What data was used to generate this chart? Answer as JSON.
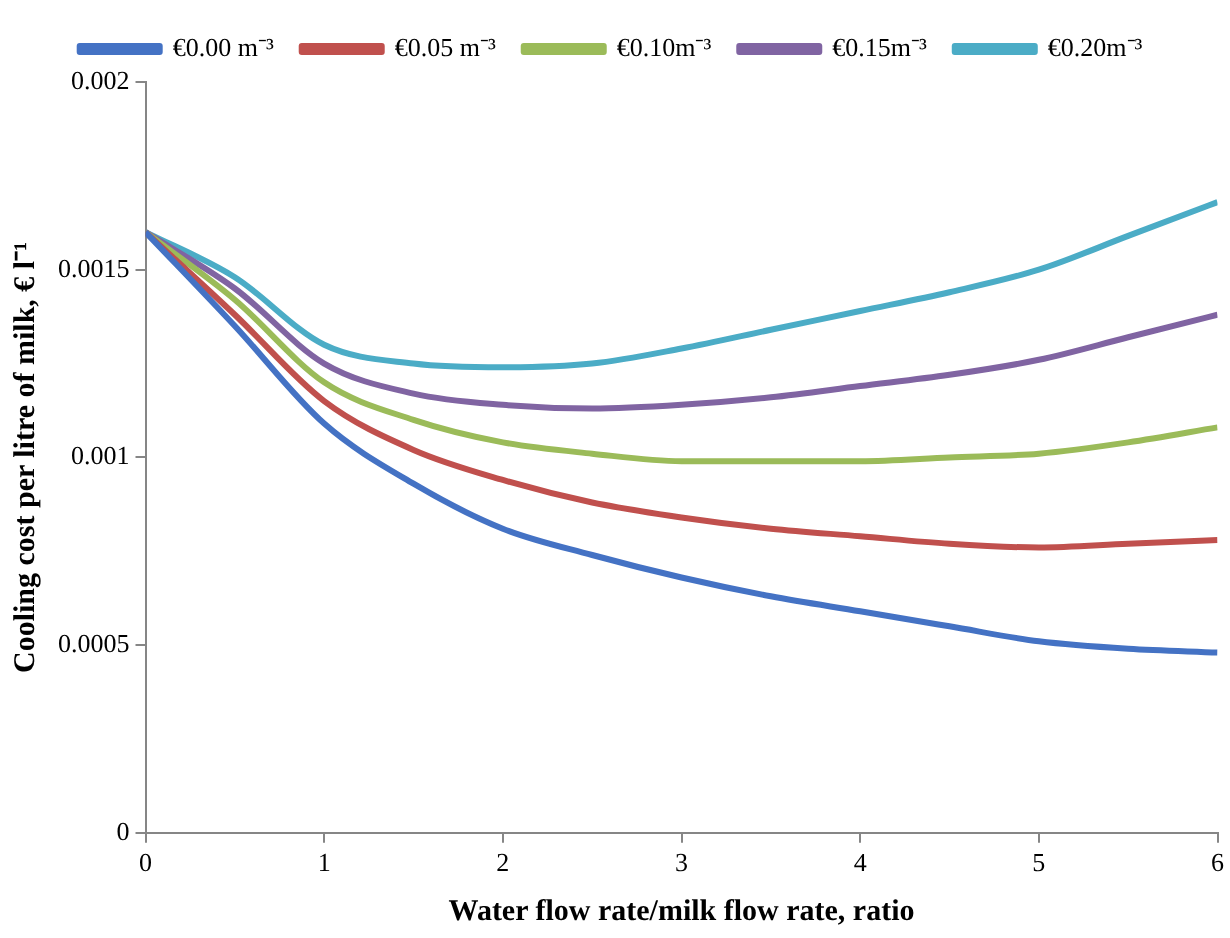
{
  "chart_data": {
    "type": "line",
    "xlabel": "Water flow rate/milk flow rate, ratio",
    "ylabel": "Cooling cost per litre of milk, € l⁻¹",
    "x": [
      0,
      0.5,
      1,
      1.5,
      2,
      2.5,
      3,
      3.5,
      4,
      4.5,
      5,
      5.5,
      6
    ],
    "series": [
      {
        "name": "€0.00 m⁻³",
        "color": "#4472c4",
        "values": [
          0.0016,
          0.00135,
          0.00109,
          0.00093,
          0.00081,
          0.00074,
          0.00068,
          0.00063,
          0.00059,
          0.00055,
          0.00051,
          0.00049,
          0.00048
        ]
      },
      {
        "name": "€0.05 m⁻³",
        "color": "#c0504d",
        "values": [
          0.0016,
          0.00138,
          0.00115,
          0.00102,
          0.00094,
          0.00088,
          0.00084,
          0.00081,
          0.00079,
          0.00077,
          0.00076,
          0.00077,
          0.00078
        ]
      },
      {
        "name": "€0.10m⁻³",
        "color": "#9bbb59",
        "values": [
          0.0016,
          0.00142,
          0.0012,
          0.0011,
          0.00104,
          0.00101,
          0.00099,
          0.00099,
          0.00099,
          0.001,
          0.00101,
          0.00104,
          0.00108
        ]
      },
      {
        "name": "€0.15m⁻³",
        "color": "#8064a2",
        "values": [
          0.0016,
          0.00145,
          0.00125,
          0.00117,
          0.00114,
          0.00113,
          0.00114,
          0.00116,
          0.00119,
          0.00122,
          0.00126,
          0.00132,
          0.00138
        ]
      },
      {
        "name": "€0.20m⁻³",
        "color": "#4bacc6",
        "values": [
          0.0016,
          0.00148,
          0.0013,
          0.00125,
          0.00124,
          0.00125,
          0.00129,
          0.00134,
          0.00139,
          0.00144,
          0.0015,
          0.00159,
          0.00168
        ]
      }
    ],
    "xlim": [
      0,
      6
    ],
    "xticks": [
      0,
      1,
      2,
      3,
      4,
      5,
      6
    ],
    "ylim": [
      0,
      0.002
    ],
    "yticks": [
      0,
      0.0005,
      0.001,
      0.0015,
      0.002
    ],
    "grid": false,
    "legend": "top",
    "marker": "none",
    "line_style": "solid"
  }
}
